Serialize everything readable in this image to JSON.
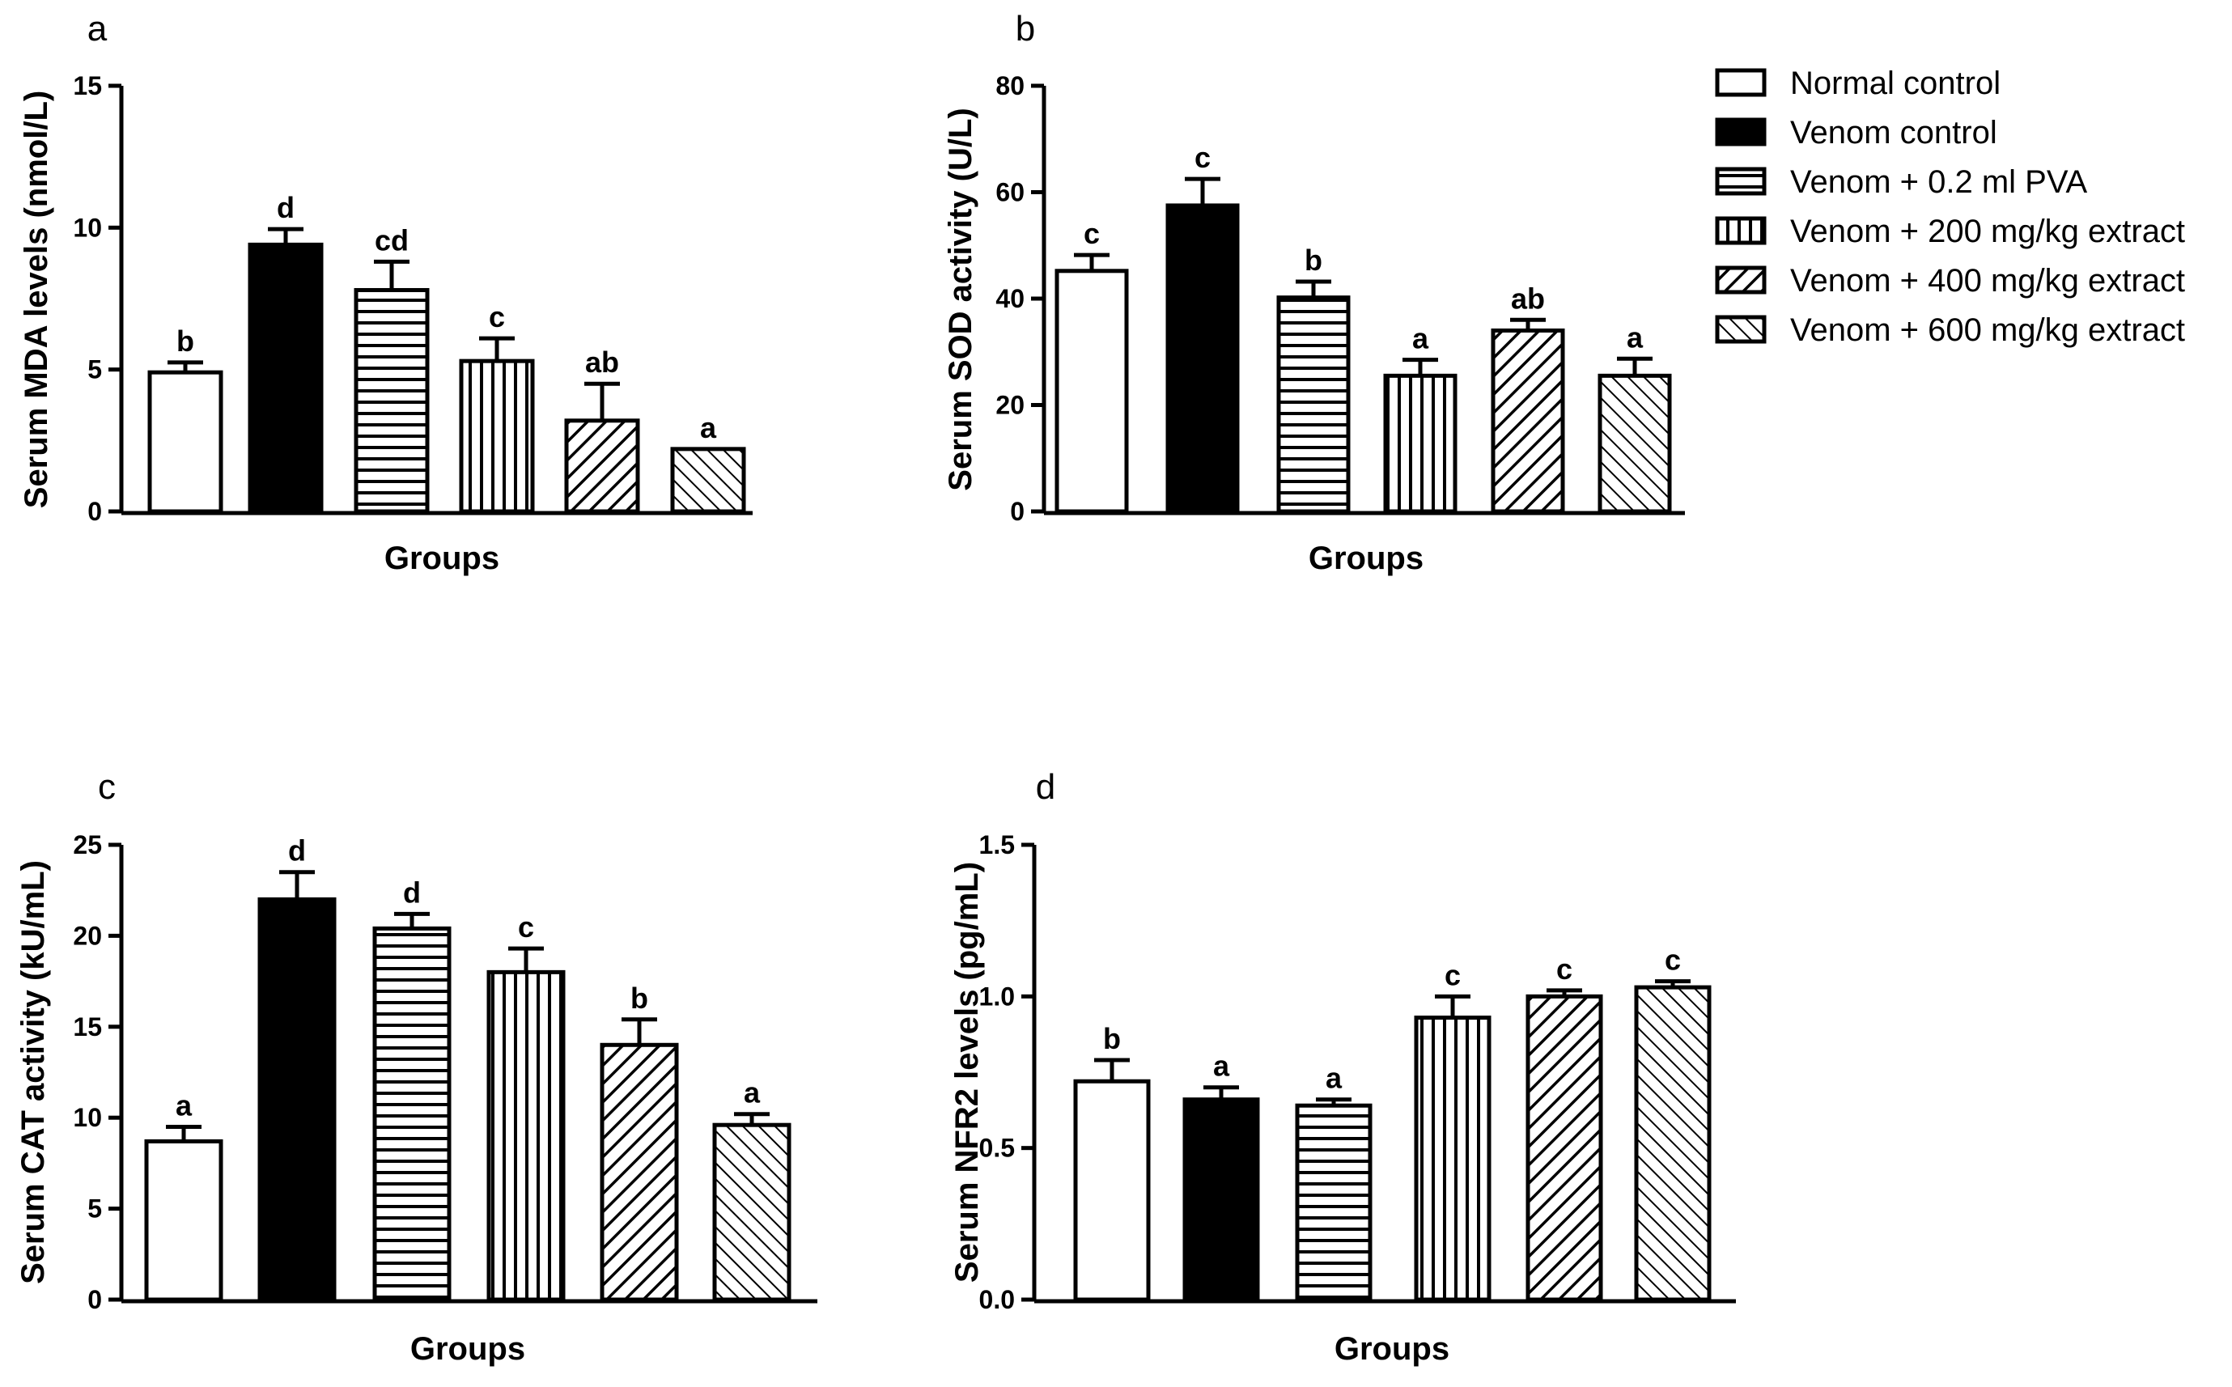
{
  "chart_data": [
    {
      "type": "bar",
      "panel_label": "a",
      "categories": [
        "Normal control",
        "Venom control",
        "Venom + 0.2 ml PVA",
        "Venom + 200 mg/kg extract",
        "Venom + 400 mg/kg extract",
        "Venom + 600 mg/kg extract"
      ],
      "values": [
        4.9,
        9.4,
        7.8,
        5.3,
        3.2,
        2.2
      ],
      "errors": [
        0.35,
        0.55,
        1.0,
        0.8,
        1.3,
        0.0
      ],
      "significance": [
        "b",
        "d",
        "cd",
        "c",
        "ab",
        "a"
      ],
      "xlabel": "Groups",
      "ylabel": "Serum MDA levels (nmol/L)",
      "ylim": [
        0,
        15
      ],
      "yticks": [
        0,
        5,
        10,
        15
      ],
      "ytick_labels": [
        "0",
        "5",
        "10",
        "15"
      ]
    },
    {
      "type": "bar",
      "panel_label": "b",
      "categories": [
        "Normal control",
        "Venom control",
        "Venom + 0.2 ml PVA",
        "Venom + 200 mg/kg extract",
        "Venom + 400 mg/kg extract",
        "Venom + 600 mg/kg extract"
      ],
      "values": [
        45.2,
        57.5,
        40.2,
        25.5,
        34.0,
        25.5
      ],
      "errors": [
        3.0,
        5.0,
        3.0,
        3.0,
        2.0,
        3.2
      ],
      "significance": [
        "c",
        "c",
        "b",
        "a",
        "ab",
        "a"
      ],
      "xlabel": "Groups",
      "ylabel": "Serum SOD activity (U/L)",
      "ylim": [
        0,
        80
      ],
      "yticks": [
        0,
        20,
        40,
        60,
        80
      ],
      "ytick_labels": [
        "0",
        "20",
        "40",
        "60",
        "80"
      ]
    },
    {
      "type": "bar",
      "panel_label": "c",
      "categories": [
        "Normal control",
        "Venom control",
        "Venom + 0.2 ml PVA",
        "Venom + 200 mg/kg extract",
        "Venom + 400 mg/kg extract",
        "Venom + 600 mg/kg extract"
      ],
      "values": [
        8.7,
        22.0,
        20.4,
        18.0,
        14.0,
        9.6
      ],
      "errors": [
        0.8,
        1.5,
        0.8,
        1.3,
        1.4,
        0.6
      ],
      "significance": [
        "a",
        "d",
        "d",
        "c",
        "b",
        "a"
      ],
      "xlabel": "Groups",
      "ylabel": "Serum CAT activity (kU/mL)",
      "ylim": [
        0,
        25
      ],
      "yticks": [
        0,
        5,
        10,
        15,
        20,
        25
      ],
      "ytick_labels": [
        "0",
        "5",
        "10",
        "15",
        "20",
        "25"
      ]
    },
    {
      "type": "bar",
      "panel_label": "d",
      "categories": [
        "Normal control",
        "Venom control",
        "Venom + 0.2 ml PVA",
        "Venom + 200 mg/kg extract",
        "Venom + 400 mg/kg extract",
        "Venom + 600 mg/kg extract"
      ],
      "values": [
        0.72,
        0.66,
        0.64,
        0.93,
        1.0,
        1.03
      ],
      "errors": [
        0.07,
        0.04,
        0.02,
        0.07,
        0.02,
        0.02
      ],
      "significance": [
        "b",
        "a",
        "a",
        "c",
        "c",
        "c"
      ],
      "xlabel": "Groups",
      "ylabel": "Serum NFR2 levels (pg/mL)",
      "ylim": [
        0,
        1.5
      ],
      "yticks": [
        0,
        0.5,
        1.0,
        1.5
      ],
      "ytick_labels": [
        "0.0",
        "0.5",
        "1.0",
        "1.5"
      ]
    }
  ],
  "legend": {
    "position": "top-right",
    "entries": [
      {
        "label": "Normal control",
        "pattern": "white"
      },
      {
        "label": "Venom control",
        "pattern": "black"
      },
      {
        "label": "Venom + 0.2 ml PVA",
        "pattern": "horizontal"
      },
      {
        "label": "Venom + 200 mg/kg extract",
        "pattern": "vertical"
      },
      {
        "label": "Venom + 400 mg/kg extract",
        "pattern": "diagonal-up"
      },
      {
        "label": "Venom + 600 mg/kg extract",
        "pattern": "diagonal-down"
      }
    ]
  },
  "colors": {
    "stroke": "#000000",
    "background": "#ffffff"
  }
}
